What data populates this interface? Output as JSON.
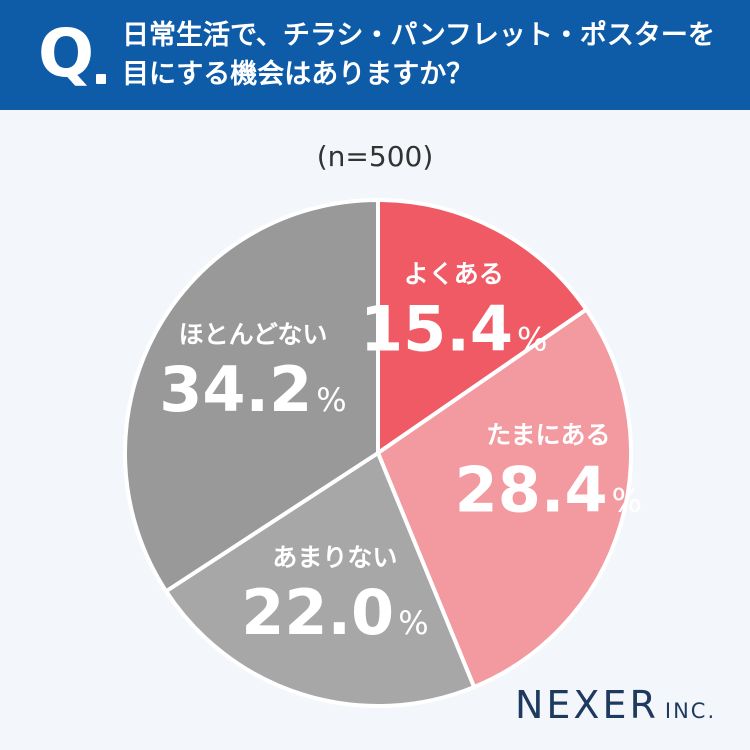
{
  "question": {
    "mark": "Q",
    "line1": "日常生活で、チラシ・パンフレット・ポスターを",
    "line2": "目にする機会はありますか？"
  },
  "sample_label": "(n=500)",
  "brand": {
    "name": "NEXER",
    "suffix": "INC."
  },
  "colors": {
    "header": "#0e5ba8",
    "background": "#f3f7fb",
    "often": "#ef5a64",
    "sometimes": "#f29aa0",
    "rarely": "#a7a7a7",
    "never": "#999999"
  },
  "chart_data": {
    "type": "pie",
    "title": "日常生活で、チラシ・パンフレット・ポスターを目にする機会はありますか？",
    "categories": [
      "よくある",
      "たまにある",
      "あまりない",
      "ほとんどない"
    ],
    "values": [
      15.4,
      28.4,
      22.0,
      34.2
    ],
    "display_values": [
      "15.4",
      "28.4",
      "22.0",
      "34.2"
    ],
    "unit": "%",
    "start": "12 o'clock",
    "direction": "clockwise",
    "legend": "none (labels inside slices)"
  }
}
